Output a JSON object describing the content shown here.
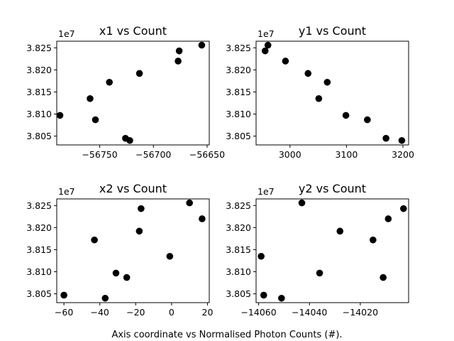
{
  "figure": {
    "caption": "Axis coordinate vs Normalised Photon Counts (#).",
    "marker_color": "#000000"
  },
  "chart_data": [
    {
      "type": "scatter",
      "title": "x1 vs Count",
      "y_multiplier": "1e7",
      "xlim": [
        -56790,
        -56648
      ],
      "ylim": [
        38030000,
        38265000
      ],
      "xticks": [
        -56750,
        -56700,
        -56650
      ],
      "xtick_labels": [
        "−56750",
        "−56700",
        "−56650"
      ],
      "yticks": [
        38050000,
        38100000,
        38150000,
        38200000,
        38250000
      ],
      "ytick_labels": [
        "3.805",
        "3.810",
        "3.815",
        "3.820",
        "3.825"
      ],
      "x": [
        -56787,
        -56759,
        -56754,
        -56741,
        -56726,
        -56722,
        -56713,
        -56677,
        -56676,
        -56655
      ],
      "y": [
        38097000,
        38135000,
        38087000,
        38172000,
        38045000,
        38040000,
        38192000,
        38220000,
        38243000,
        38256000
      ]
    },
    {
      "type": "scatter",
      "title": "y1 vs Count",
      "y_multiplier": "1e7",
      "xlim": [
        2940,
        3210
      ],
      "ylim": [
        38030000,
        38265000
      ],
      "xticks": [
        3000,
        3100,
        3200
      ],
      "xtick_labels": [
        "3000",
        "3100",
        "3200"
      ],
      "yticks": [
        38050000,
        38100000,
        38150000,
        38200000,
        38250000
      ],
      "ytick_labels": [
        "3.805",
        "3.810",
        "3.815",
        "3.820",
        "3.825"
      ],
      "x": [
        2956,
        2961,
        2992,
        3032,
        3051,
        3066,
        3099,
        3137,
        3170,
        3198
      ],
      "y": [
        38243000,
        38256000,
        38220000,
        38192000,
        38135000,
        38172000,
        38097000,
        38087000,
        38045000,
        38040000
      ]
    },
    {
      "type": "scatter",
      "title": "x2 vs Count",
      "y_multiplier": "1e7",
      "xlim": [
        -64,
        21
      ],
      "ylim": [
        38030000,
        38265000
      ],
      "xticks": [
        -60,
        -40,
        -20,
        0,
        20
      ],
      "xtick_labels": [
        "−60",
        "−40",
        "−20",
        "0",
        "20"
      ],
      "yticks": [
        38050000,
        38100000,
        38150000,
        38200000,
        38250000
      ],
      "ytick_labels": [
        "3.805",
        "3.810",
        "3.815",
        "3.820",
        "3.825"
      ],
      "x": [
        -60,
        -43,
        -37,
        -31,
        -25,
        -18,
        -17,
        -1,
        10,
        17
      ],
      "y": [
        38047000,
        38172000,
        38040000,
        38097000,
        38087000,
        38192000,
        38243000,
        38135000,
        38256000,
        38220000
      ]
    },
    {
      "type": "scatter",
      "title": "y2 vs Count",
      "y_multiplier": "1e7",
      "xlim": [
        -14061,
        -14001
      ],
      "ylim": [
        38030000,
        38265000
      ],
      "xticks": [
        -14060,
        -14040,
        -14020
      ],
      "xtick_labels": [
        "−14060",
        "−14040",
        "−14020"
      ],
      "yticks": [
        38050000,
        38100000,
        38150000,
        38200000,
        38250000
      ],
      "ytick_labels": [
        "3.805",
        "3.810",
        "3.815",
        "3.820",
        "3.825"
      ],
      "x": [
        -14059,
        -14058,
        -14051,
        -14043,
        -14036,
        -14028,
        -14015,
        -14011,
        -14009,
        -14003
      ],
      "y": [
        38135000,
        38047000,
        38040000,
        38256000,
        38097000,
        38192000,
        38172000,
        38087000,
        38220000,
        38243000
      ]
    }
  ]
}
